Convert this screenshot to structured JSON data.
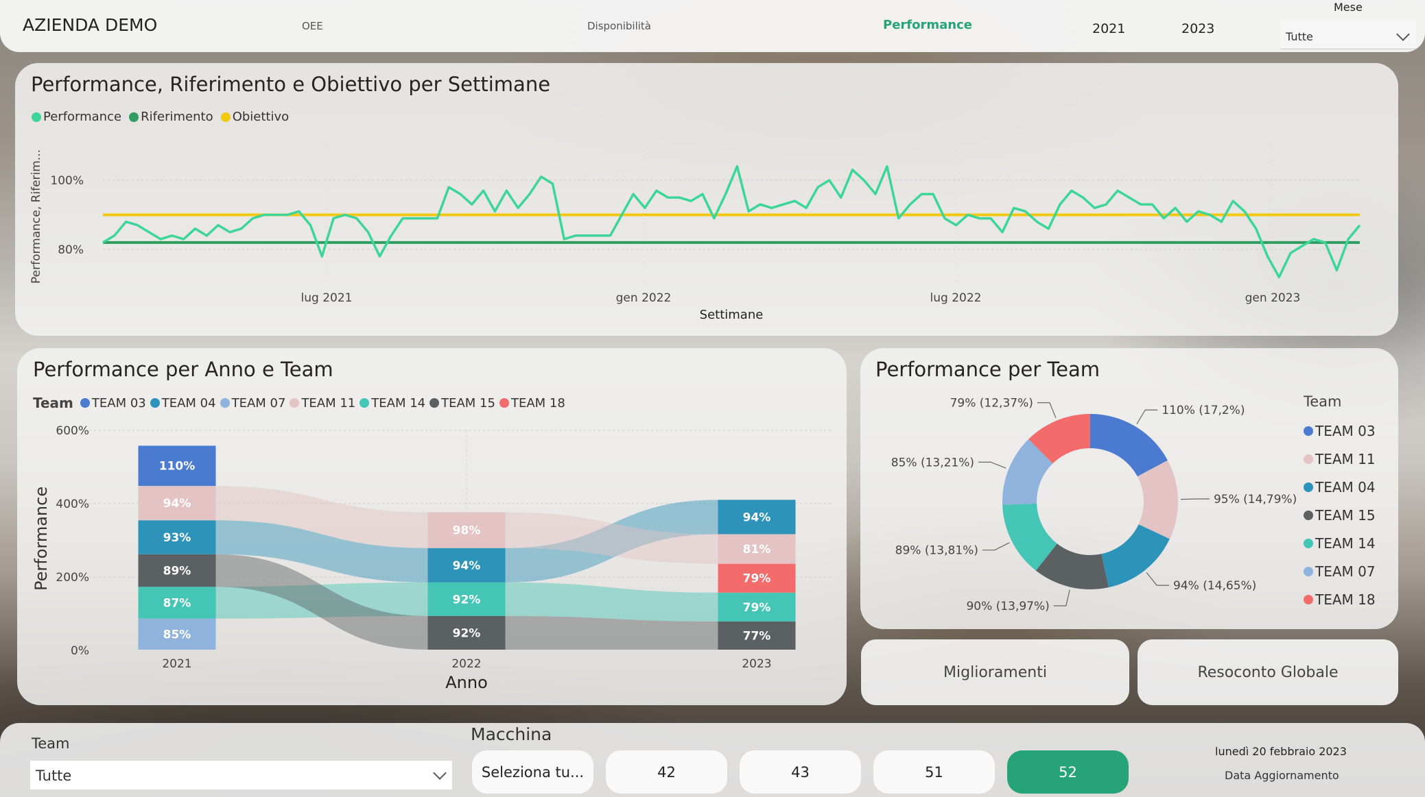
{
  "header": {
    "company": "AZIENDA DEMO",
    "tabs": [
      {
        "label": "OEE",
        "active": false
      },
      {
        "label": "Disponibilità",
        "active": false
      },
      {
        "label": "Performance",
        "active": true
      }
    ],
    "years": [
      "2021",
      "2023"
    ],
    "month_label": "Mese",
    "month_value": "Tutte"
  },
  "colors": {
    "accent": "#27a37a",
    "performance": "#3dd598",
    "riferimento": "#2e9d5f",
    "obiettivo": "#f2c811",
    "team03": "#4a7bd0",
    "team04": "#2e93b8",
    "team07": "#8fb3dc",
    "team11": "#e3c3c3",
    "team14": "#45c5b5",
    "team15": "#5b6062",
    "team18": "#f36c6c"
  },
  "line_chart": {
    "title": "Performance, Riferimento e Obiettivo per Settimane",
    "legend": [
      "Performance",
      "Riferimento",
      "Obiettivo"
    ],
    "ylabel": "Performance, Riferim...",
    "xlabel": "Settimane",
    "yticks": [
      "100%",
      "80%"
    ],
    "xticks": [
      "lug 2021",
      "gen 2022",
      "lug 2022",
      "gen 2023"
    ]
  },
  "bar_chart": {
    "title": "Performance per Anno e Team",
    "legend_title": "Team",
    "legend": [
      "TEAM 03",
      "TEAM 04",
      "TEAM 07",
      "TEAM 11",
      "TEAM 14",
      "TEAM 15",
      "TEAM 18"
    ],
    "ylabel": "Performance",
    "xlabel": "Anno",
    "yticks": [
      "600%",
      "400%",
      "200%",
      "0%"
    ],
    "categories": [
      "2021",
      "2022",
      "2023"
    ]
  },
  "donut_chart": {
    "title": "Performance per Team",
    "legend_title": "Team",
    "legend": [
      "TEAM 03",
      "TEAM 11",
      "TEAM 04",
      "TEAM 15",
      "TEAM 14",
      "TEAM 07",
      "TEAM 18"
    ]
  },
  "buttons": {
    "miglioramenti": "Miglioramenti",
    "resoconto": "Resoconto Globale"
  },
  "footer": {
    "team_label": "Team",
    "team_value": "Tutte",
    "machine_label": "Macchina",
    "machines": [
      "Seleziona tu...",
      "42",
      "43",
      "51",
      "52"
    ],
    "selected_machine": "52",
    "date": "lunedì 20 febbraio 2023",
    "date_caption": "Data Aggiornamento"
  },
  "chart_data": [
    {
      "type": "line",
      "title": "Performance, Riferimento e Obiettivo per Settimane",
      "xlabel": "Settimane",
      "ylabel": "Performance, Riferim...",
      "x_range": [
        "2021-01",
        "2023-02"
      ],
      "ylim": [
        70,
        108
      ],
      "series": [
        {
          "name": "Performance",
          "values": [
            82,
            84,
            88,
            87,
            85,
            83,
            84,
            83,
            86,
            84,
            87,
            85,
            86,
            89,
            90,
            90,
            90,
            91,
            87,
            78,
            89,
            90,
            89,
            85,
            78,
            84,
            89,
            89,
            89,
            89,
            98,
            96,
            93,
            97,
            91,
            97,
            92,
            96,
            101,
            99,
            83,
            84,
            84,
            84,
            84,
            90,
            96,
            92,
            97,
            95,
            95,
            94,
            96,
            89,
            96,
            104,
            91,
            93,
            92,
            93,
            94,
            92,
            98,
            100,
            95,
            103,
            100,
            96,
            104,
            89,
            93,
            96,
            96,
            89,
            87,
            90,
            89,
            89,
            85,
            92,
            91,
            88,
            86,
            93,
            97,
            95,
            92,
            93,
            97,
            95,
            93,
            93,
            89,
            92,
            88,
            91,
            90,
            88,
            94,
            91,
            86,
            78,
            72,
            79,
            81,
            83,
            82,
            74,
            83,
            87
          ]
        },
        {
          "name": "Riferimento",
          "values": [
            82,
            82
          ]
        },
        {
          "name": "Obiettivo",
          "values": [
            90,
            90
          ]
        }
      ]
    },
    {
      "type": "bar",
      "title": "Performance per Anno e Team",
      "xlabel": "Anno",
      "ylabel": "Performance",
      "categories": [
        "2021",
        "2022",
        "2023"
      ],
      "ylim": [
        0,
        600
      ],
      "stacked": true,
      "segments": [
        [
          {
            "team": "TEAM 07",
            "value": 85,
            "label": "85%"
          },
          {
            "team": "TEAM 14",
            "value": 87,
            "label": "87%"
          },
          {
            "team": "TEAM 15",
            "value": 89,
            "label": "89%"
          },
          {
            "team": "TEAM 04",
            "value": 93,
            "label": "93%"
          },
          {
            "team": "TEAM 11",
            "value": 94,
            "label": "94%"
          },
          {
            "team": "TEAM 03",
            "value": 110,
            "label": "110%"
          }
        ],
        [
          {
            "team": "TEAM 15",
            "value": 92,
            "label": "92%"
          },
          {
            "team": "TEAM 14",
            "value": 92,
            "label": "92%"
          },
          {
            "team": "TEAM 04",
            "value": 94,
            "label": "94%"
          },
          {
            "team": "TEAM 11",
            "value": 98,
            "label": "98%"
          }
        ],
        [
          {
            "team": "TEAM 15",
            "value": 77,
            "label": "77%"
          },
          {
            "team": "TEAM 14",
            "value": 79,
            "label": "79%"
          },
          {
            "team": "TEAM 18",
            "value": 79,
            "label": "79%"
          },
          {
            "team": "TEAM 11",
            "value": 81,
            "label": "81%"
          },
          {
            "team": "TEAM 04",
            "value": 94,
            "label": "94%"
          }
        ]
      ]
    },
    {
      "type": "pie",
      "title": "Performance per Team",
      "donut": true,
      "slices": [
        {
          "team": "TEAM 03",
          "value": 17.2,
          "label": "110% (17,2%)"
        },
        {
          "team": "TEAM 11",
          "value": 14.79,
          "label": "95% (14,79%)"
        },
        {
          "team": "TEAM 04",
          "value": 14.65,
          "label": "94% (14,65%)"
        },
        {
          "team": "TEAM 15",
          "value": 13.97,
          "label": "90% (13,97%)"
        },
        {
          "team": "TEAM 14",
          "value": 13.81,
          "label": "89% (13,81%)"
        },
        {
          "team": "TEAM 07",
          "value": 13.21,
          "label": "85% (13,21%)"
        },
        {
          "team": "TEAM 18",
          "value": 12.37,
          "label": "79% (12,37%)"
        }
      ]
    }
  ]
}
